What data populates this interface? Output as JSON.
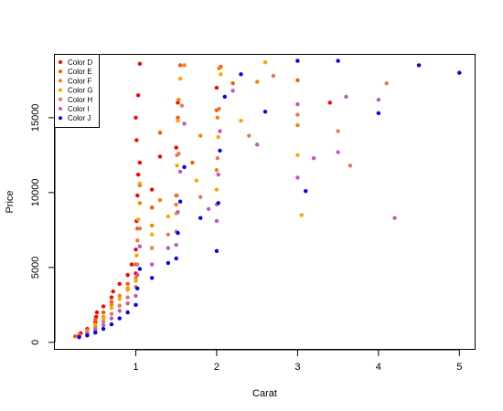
{
  "chart_data": {
    "type": "scatter",
    "title": "",
    "xlabel": "Carat",
    "ylabel": "Price",
    "xlim": [
      0.0,
      5.2
    ],
    "ylim": [
      -500,
      19200
    ],
    "xticks": [
      1,
      2,
      3,
      4,
      5
    ],
    "xtick_labels": [
      "1",
      "2",
      "3",
      "4",
      "5"
    ],
    "yticks": [
      0,
      5000,
      10000,
      15000
    ],
    "ytick_labels": [
      "0",
      "5000",
      "10000",
      "15000"
    ],
    "grid": false,
    "legend_position": "top-left",
    "series": [
      {
        "name": "Color D",
        "color": "#ff0000",
        "points": [
          [
            0.3,
            520
          ],
          [
            0.32,
            610
          ],
          [
            0.4,
            900
          ],
          [
            0.5,
            1350
          ],
          [
            0.51,
            1700
          ],
          [
            0.52,
            2000
          ],
          [
            0.6,
            2400
          ],
          [
            0.7,
            3000
          ],
          [
            0.72,
            3400
          ],
          [
            0.8,
            3900
          ],
          [
            0.9,
            4500
          ],
          [
            0.95,
            5200
          ],
          [
            1.0,
            4600
          ],
          [
            1.0,
            6200
          ],
          [
            1.01,
            8100
          ],
          [
            1.02,
            9800
          ],
          [
            1.03,
            11200
          ],
          [
            1.05,
            12000
          ],
          [
            1.01,
            13500
          ],
          [
            1.0,
            15000
          ],
          [
            1.03,
            16500
          ],
          [
            1.05,
            18600
          ],
          [
            1.2,
            10200
          ],
          [
            1.3,
            12400
          ],
          [
            1.5,
            13000
          ],
          [
            1.52,
            16000
          ],
          [
            2.0,
            17000
          ],
          [
            3.4,
            16000
          ]
        ]
      },
      {
        "name": "Color E",
        "color": "#ff5500",
        "points": [
          [
            0.25,
            400
          ],
          [
            0.3,
            500
          ],
          [
            0.4,
            820
          ],
          [
            0.5,
            1500
          ],
          [
            0.6,
            2000
          ],
          [
            0.7,
            2700
          ],
          [
            0.9,
            3900
          ],
          [
            1.0,
            5200
          ],
          [
            1.02,
            7600
          ],
          [
            1.05,
            10500
          ],
          [
            1.2,
            9000
          ],
          [
            1.3,
            14000
          ],
          [
            1.5,
            9800
          ],
          [
            1.52,
            15000
          ],
          [
            1.55,
            18500
          ],
          [
            1.7,
            12000
          ],
          [
            2.0,
            15500
          ],
          [
            2.05,
            18400
          ],
          [
            2.2,
            17300
          ],
          [
            3.0,
            17500
          ]
        ]
      },
      {
        "name": "Color F",
        "color": "#ff8000",
        "points": [
          [
            0.3,
            450
          ],
          [
            0.4,
            650
          ],
          [
            0.5,
            1200
          ],
          [
            0.6,
            1700
          ],
          [
            0.7,
            2500
          ],
          [
            0.8,
            3100
          ],
          [
            0.9,
            3600
          ],
          [
            1.0,
            4300
          ],
          [
            1.02,
            6800
          ],
          [
            1.05,
            9300
          ],
          [
            1.2,
            7800
          ],
          [
            1.3,
            9500
          ],
          [
            1.5,
            9200
          ],
          [
            1.51,
            12500
          ],
          [
            1.53,
            16200
          ],
          [
            1.6,
            18500
          ],
          [
            1.8,
            13800
          ],
          [
            2.0,
            11500
          ],
          [
            2.01,
            15000
          ],
          [
            2.03,
            18300
          ],
          [
            2.5,
            17400
          ],
          [
            3.0,
            14500
          ]
        ]
      },
      {
        "name": "Color G",
        "color": "#ffa500",
        "points": [
          [
            0.3,
            480
          ],
          [
            0.4,
            700
          ],
          [
            0.5,
            1100
          ],
          [
            0.6,
            1600
          ],
          [
            0.7,
            2300
          ],
          [
            0.8,
            2900
          ],
          [
            0.9,
            3500
          ],
          [
            1.0,
            4100
          ],
          [
            1.01,
            5800
          ],
          [
            1.03,
            8200
          ],
          [
            1.05,
            10600
          ],
          [
            1.2,
            7200
          ],
          [
            1.4,
            8400
          ],
          [
            1.5,
            8600
          ],
          [
            1.51,
            11800
          ],
          [
            1.52,
            14800
          ],
          [
            1.55,
            17600
          ],
          [
            1.75,
            10800
          ],
          [
            2.0,
            10200
          ],
          [
            2.02,
            13700
          ],
          [
            2.05,
            17900
          ],
          [
            2.3,
            14800
          ],
          [
            2.6,
            18700
          ],
          [
            3.0,
            12500
          ],
          [
            3.05,
            8500
          ]
        ]
      },
      {
        "name": "Color H",
        "color": "#e07a5f",
        "points": [
          [
            0.3,
            440
          ],
          [
            0.4,
            620
          ],
          [
            0.5,
            950
          ],
          [
            0.6,
            1380
          ],
          [
            0.7,
            1900
          ],
          [
            0.8,
            2450
          ],
          [
            0.9,
            3000
          ],
          [
            1.0,
            3700
          ],
          [
            1.02,
            5200
          ],
          [
            1.05,
            7600
          ],
          [
            1.2,
            6300
          ],
          [
            1.4,
            7200
          ],
          [
            1.5,
            7400
          ],
          [
            1.51,
            9800
          ],
          [
            1.53,
            12600
          ],
          [
            1.57,
            15800
          ],
          [
            1.8,
            9700
          ],
          [
            2.0,
            9200
          ],
          [
            2.01,
            12300
          ],
          [
            2.03,
            15600
          ],
          [
            2.4,
            13800
          ],
          [
            2.7,
            17800
          ],
          [
            3.0,
            15200
          ],
          [
            3.5,
            14100
          ],
          [
            3.65,
            11800
          ],
          [
            4.1,
            17300
          ]
        ]
      },
      {
        "name": "Color I",
        "color": "#bd58c4",
        "points": [
          [
            0.3,
            420
          ],
          [
            0.4,
            560
          ],
          [
            0.5,
            830
          ],
          [
            0.6,
            1150
          ],
          [
            0.7,
            1600
          ],
          [
            0.8,
            2100
          ],
          [
            0.9,
            2600
          ],
          [
            1.0,
            3100
          ],
          [
            1.02,
            4500
          ],
          [
            1.05,
            6400
          ],
          [
            1.2,
            5200
          ],
          [
            1.4,
            6300
          ],
          [
            1.5,
            6500
          ],
          [
            1.52,
            8700
          ],
          [
            1.55,
            11400
          ],
          [
            1.6,
            14600
          ],
          [
            1.9,
            8900
          ],
          [
            2.0,
            8100
          ],
          [
            2.02,
            11200
          ],
          [
            2.04,
            14100
          ],
          [
            2.2,
            16800
          ],
          [
            2.5,
            13200
          ],
          [
            3.0,
            11000
          ],
          [
            3.0,
            15900
          ],
          [
            3.2,
            12300
          ],
          [
            3.5,
            12700
          ],
          [
            3.6,
            16400
          ],
          [
            4.0,
            16200
          ],
          [
            4.2,
            8300
          ]
        ]
      },
      {
        "name": "Color J",
        "color": "#0000ff",
        "points": [
          [
            0.3,
            340
          ],
          [
            0.4,
            460
          ],
          [
            0.5,
            650
          ],
          [
            0.6,
            900
          ],
          [
            0.7,
            1200
          ],
          [
            0.8,
            1600
          ],
          [
            0.9,
            2000
          ],
          [
            1.0,
            2500
          ],
          [
            1.02,
            3600
          ],
          [
            1.05,
            4900
          ],
          [
            1.2,
            4300
          ],
          [
            1.4,
            5300
          ],
          [
            1.5,
            5600
          ],
          [
            1.52,
            7300
          ],
          [
            1.55,
            9400
          ],
          [
            1.6,
            11700
          ],
          [
            1.8,
            8300
          ],
          [
            2.0,
            6100
          ],
          [
            2.02,
            9300
          ],
          [
            2.04,
            12800
          ],
          [
            2.1,
            16400
          ],
          [
            2.3,
            17900
          ],
          [
            2.6,
            15400
          ],
          [
            3.0,
            18800
          ],
          [
            3.1,
            10100
          ],
          [
            3.5,
            18800
          ],
          [
            4.0,
            15300
          ],
          [
            4.5,
            18500
          ],
          [
            5.0,
            18000
          ]
        ]
      }
    ]
  }
}
